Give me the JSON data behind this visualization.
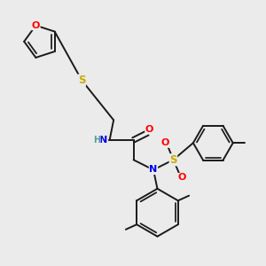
{
  "bg_color": "#ebebeb",
  "bond_color": "#1a1a1a",
  "atom_colors": {
    "O": "#ff0000",
    "S": "#ccaa00",
    "N": "#0000ee",
    "H": "#5a9a9a",
    "C": "#1a1a1a"
  },
  "figsize": [
    3.0,
    3.0
  ],
  "dpi": 100,
  "lw": 1.4,
  "lw_double_inner": 1.2,
  "font_size": 7.5
}
